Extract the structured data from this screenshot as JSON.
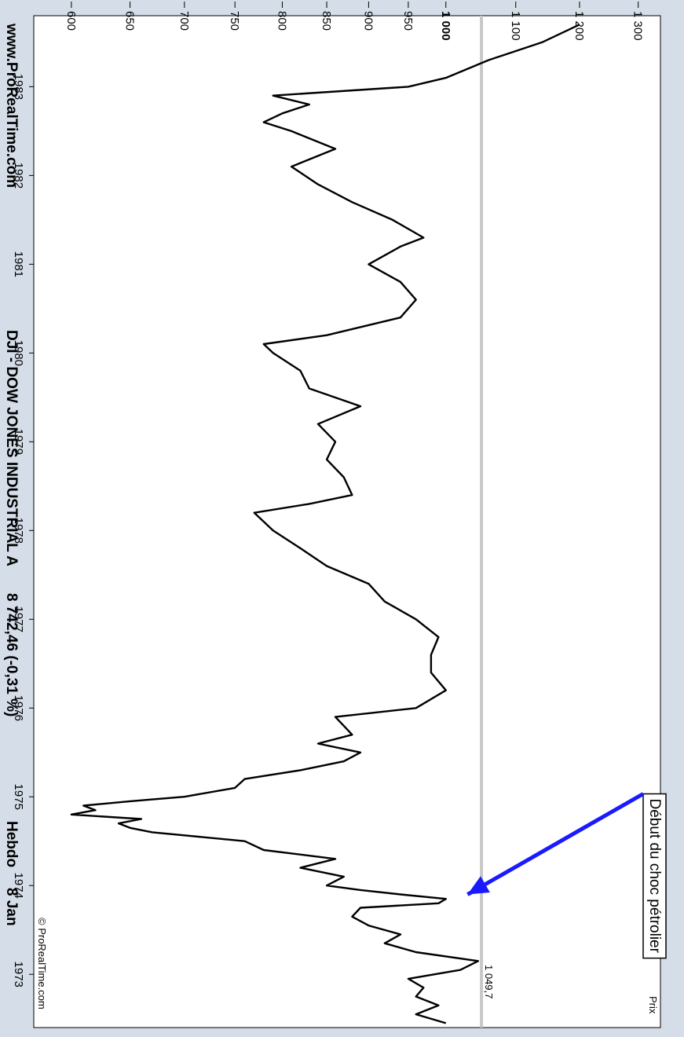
{
  "header": {
    "site": "www.ProRealTime.com",
    "instrument": "DJI - DOW JONES INDUSTRIAL A",
    "quote": "8 742,46 (-0,31 %)",
    "period": "Hebdo",
    "date": "8 Jan"
  },
  "panel": {
    "label": "Prix",
    "reference_label": "1 049,7",
    "watermark": "© ProRealTime.com"
  },
  "annotation": {
    "text": "Début du choc pétrolier",
    "arrow_color": "#1a1aff"
  },
  "colors": {
    "background": "#d4dde8",
    "plot": "#ffffff",
    "line": "#000000",
    "reference_line": "#c8c8c8"
  },
  "chart_data": {
    "type": "line",
    "title": "",
    "xlabel": "",
    "ylabel": "",
    "frequency": "weekly",
    "x_ticks": [
      "1973",
      "1974",
      "1975",
      "1976",
      "1977",
      "1978",
      "1979",
      "1980",
      "1981",
      "1982",
      "1983"
    ],
    "y_ticks": [
      600,
      650,
      700,
      750,
      800,
      850,
      900,
      950,
      1000,
      1100,
      1200,
      1300
    ],
    "y_tick_labels": [
      "600",
      "650",
      "700",
      "750",
      "800",
      "850",
      "900",
      "950",
      "1 000",
      "1 100",
      "1 200",
      "1 300"
    ],
    "y_emphasis_tick": "1 000",
    "xlim": [
      1972.4,
      1983.8
    ],
    "ylim": [
      570,
      1340
    ],
    "scale": "log",
    "reference_line": 1049.7,
    "series": [
      {
        "x": [
          1972.45,
          1972.55,
          1972.65,
          1972.75,
          1972.85,
          1972.95,
          1973.05,
          1973.15,
          1973.25,
          1973.35,
          1973.45,
          1973.55,
          1973.65,
          1973.75,
          1973.8,
          1973.85,
          1973.9,
          1973.95,
          1974.0,
          1974.1,
          1974.2,
          1974.3,
          1974.4,
          1974.5,
          1974.6,
          1974.65,
          1974.7,
          1974.75,
          1974.8,
          1974.85,
          1974.9,
          1974.95,
          1975.0,
          1975.1,
          1975.2,
          1975.3,
          1975.4,
          1975.5,
          1975.6,
          1975.7,
          1975.8,
          1975.9,
          1976.0,
          1976.2,
          1976.4,
          1976.6,
          1976.8,
          1977.0,
          1977.2,
          1977.4,
          1977.6,
          1977.8,
          1978.0,
          1978.1,
          1978.2,
          1978.3,
          1978.4,
          1978.6,
          1978.8,
          1979.0,
          1979.2,
          1979.4,
          1979.6,
          1979.8,
          1980.0,
          1980.1,
          1980.2,
          1980.4,
          1980.6,
          1980.8,
          1981.0,
          1981.2,
          1981.3,
          1981.5,
          1981.7,
          1981.9,
          1982.1,
          1982.3,
          1982.5,
          1982.6,
          1982.7,
          1982.8,
          1982.9,
          1983.0,
          1983.1,
          1983.3,
          1983.5,
          1983.7
        ],
        "y": [
          1000,
          960,
          990,
          960,
          970,
          950,
          1020,
          1045,
          960,
          920,
          940,
          900,
          880,
          890,
          990,
          1000,
          940,
          890,
          850,
          870,
          820,
          860,
          780,
          760,
          670,
          650,
          640,
          660,
          600,
          620,
          610,
          650,
          700,
          750,
          760,
          820,
          870,
          890,
          840,
          880,
          870,
          860,
          960,
          1000,
          980,
          980,
          990,
          960,
          920,
          900,
          850,
          820,
          790,
          780,
          770,
          830,
          880,
          870,
          850,
          860,
          840,
          890,
          830,
          820,
          790,
          780,
          850,
          940,
          960,
          940,
          900,
          940,
          970,
          930,
          880,
          840,
          810,
          860,
          810,
          780,
          800,
          830,
          790,
          950,
          1000,
          1060,
          1140,
          1200
        ]
      }
    ]
  }
}
